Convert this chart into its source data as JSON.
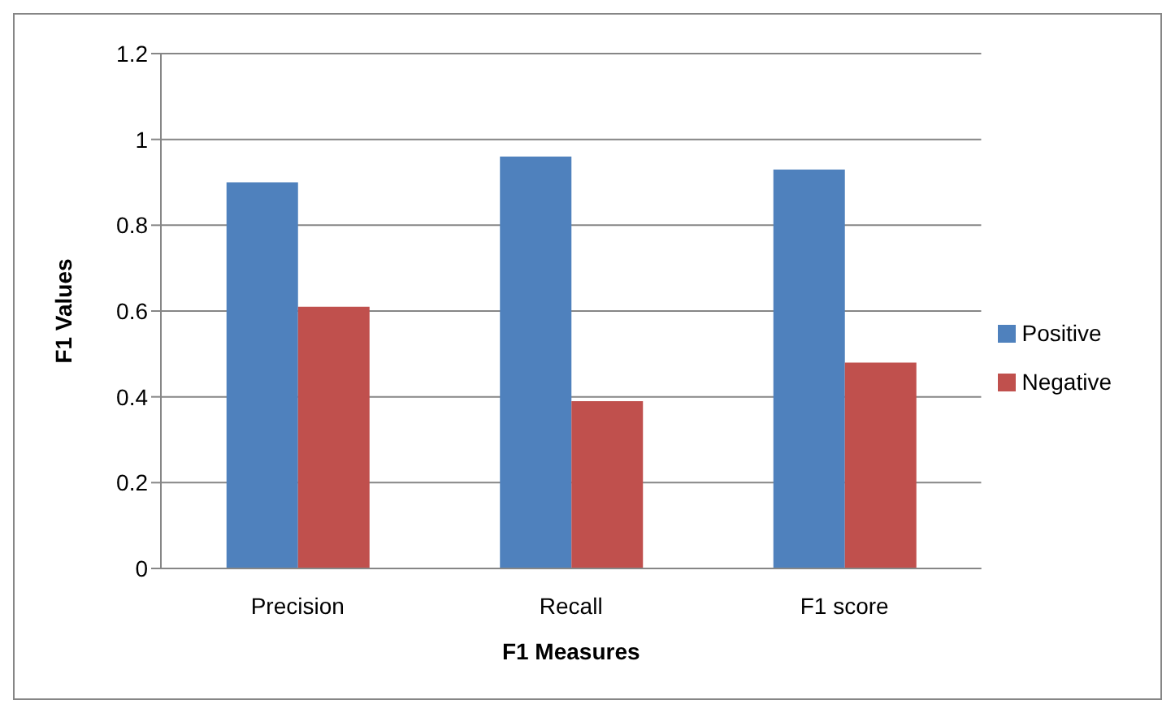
{
  "chart_data": {
    "type": "bar",
    "xlabel": "F1 Measures",
    "ylabel": "F1 Values",
    "categories": [
      "Precision",
      "Recall",
      "F1 score"
    ],
    "series": [
      {
        "name": "Positive",
        "color": "#4f81bd",
        "values": [
          0.9,
          0.96,
          0.93
        ]
      },
      {
        "name": "Negative",
        "color": "#c0504d",
        "values": [
          0.61,
          0.39,
          0.48
        ]
      }
    ],
    "ylim": [
      0,
      1.2
    ],
    "yticks": [
      0,
      0.2,
      0.4,
      0.6,
      0.8,
      1,
      1.2
    ],
    "grid": "y",
    "legend": "right"
  }
}
